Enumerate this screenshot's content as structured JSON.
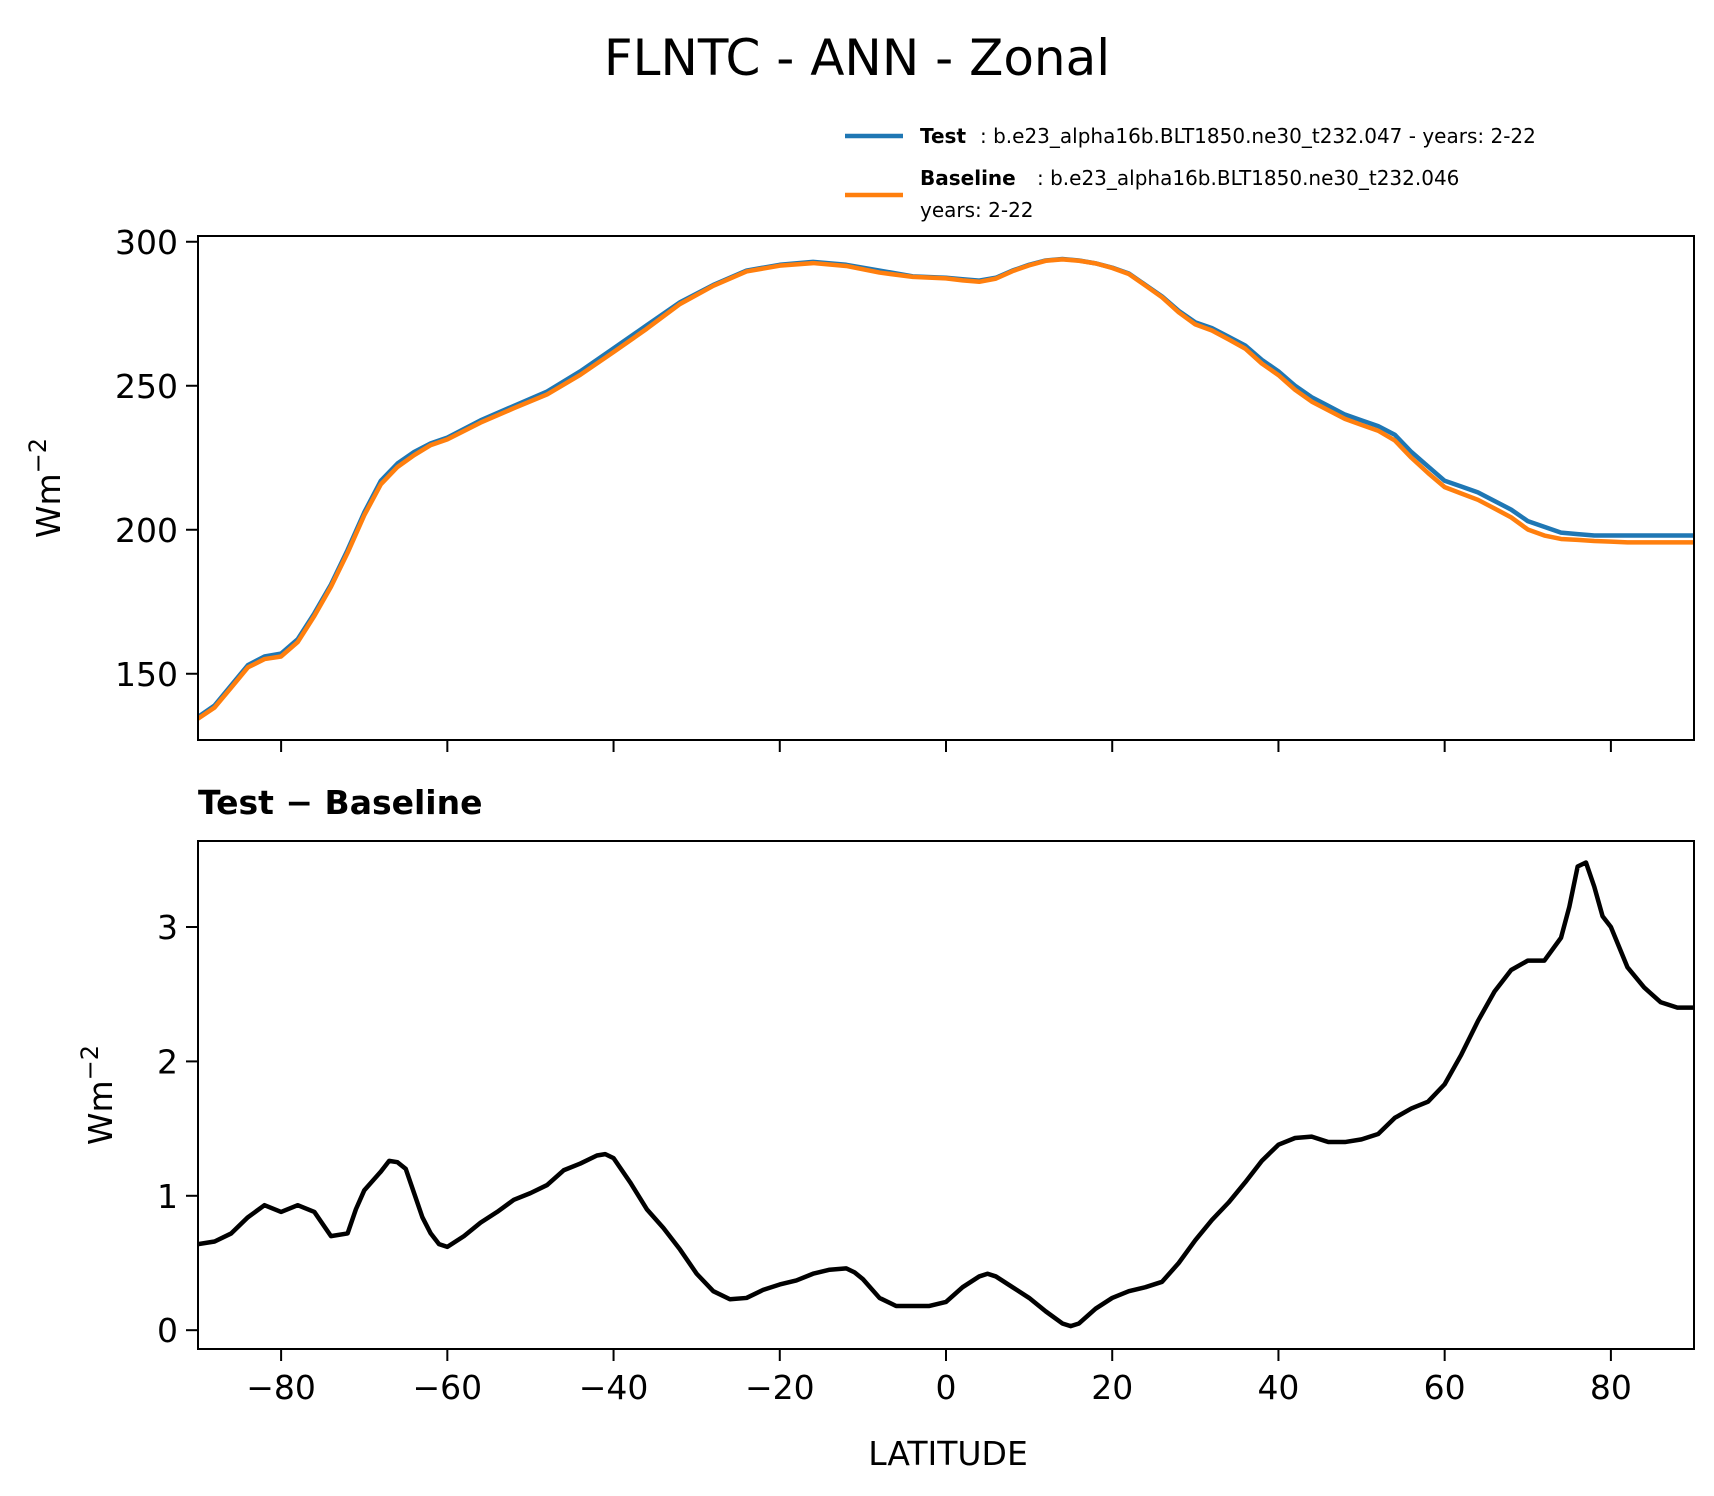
{
  "title": "FLNTC - ANN - Zonal",
  "legend": {
    "test_name": "Test",
    "test_desc": ": b.e23_alpha16b.BLT1850.ne30_t232.047 - years: 2-22",
    "baseline_name": "Baseline",
    "baseline_desc": ": b.e23_alpha16b.BLT1850.ne30_t232.046",
    "baseline_desc2": "years: 2-22"
  },
  "colors": {
    "test": "#1f77b4",
    "baseline": "#ff7f0e",
    "diff": "#000000"
  },
  "diff_title": "Test − Baseline",
  "xlabel": "LATITUDE",
  "chart_data": [
    {
      "type": "line",
      "title": "FLNTC - ANN - Zonal",
      "xlabel": "",
      "ylabel": "Wm⁻²",
      "xlim": [
        -90,
        90
      ],
      "ylim": [
        127,
        302
      ],
      "xticks": [
        -80,
        -60,
        -40,
        -20,
        0,
        20,
        40,
        60,
        80
      ],
      "yticks": [
        150,
        200,
        250,
        300
      ],
      "ytick_labels": [
        "150",
        "200",
        "250",
        "300"
      ],
      "legend_position": "top-right",
      "grid": false,
      "series": [
        {
          "name": "Test",
          "x": [
            -90,
            -88,
            -86,
            -84,
            -82,
            -80,
            -78,
            -76,
            -74,
            -72,
            -70,
            -68,
            -66,
            -64,
            -62,
            -60,
            -56,
            -52,
            -48,
            -44,
            -40,
            -36,
            -32,
            -28,
            -24,
            -20,
            -16,
            -12,
            -8,
            -4,
            0,
            2,
            4,
            6,
            8,
            10,
            12,
            14,
            16,
            18,
            20,
            22,
            24,
            26,
            28,
            30,
            32,
            34,
            36,
            38,
            40,
            42,
            44,
            46,
            48,
            50,
            52,
            54,
            56,
            58,
            60,
            62,
            64,
            66,
            68,
            70,
            72,
            74,
            76,
            78,
            80,
            82,
            84,
            86,
            88,
            90
          ],
          "y": [
            135,
            139,
            146,
            153,
            156,
            157,
            162,
            171,
            181,
            193,
            206,
            217,
            223,
            227,
            230,
            232,
            238,
            243,
            248,
            255,
            263,
            271,
            279,
            285,
            290,
            292,
            293,
            292,
            290,
            288,
            287.5,
            287,
            286.5,
            287.5,
            290,
            292,
            293.5,
            294,
            293.5,
            292.5,
            291,
            289,
            285,
            281,
            276,
            272,
            270,
            267,
            264,
            259,
            255,
            250,
            246,
            243,
            240,
            238,
            236,
            233,
            227,
            222,
            217,
            215,
            213,
            210,
            207,
            203,
            201,
            199,
            198.5,
            198,
            198,
            198,
            198,
            198,
            198,
            198
          ]
        },
        {
          "name": "Baseline",
          "x": [
            -90,
            -88,
            -86,
            -84,
            -82,
            -80,
            -78,
            -76,
            -74,
            -72,
            -70,
            -68,
            -66,
            -64,
            -62,
            -60,
            -56,
            -52,
            -48,
            -44,
            -40,
            -36,
            -32,
            -28,
            -24,
            -20,
            -16,
            -12,
            -8,
            -4,
            0,
            2,
            4,
            6,
            8,
            10,
            12,
            14,
            16,
            18,
            20,
            22,
            24,
            26,
            28,
            30,
            32,
            34,
            36,
            38,
            40,
            42,
            44,
            46,
            48,
            50,
            52,
            54,
            56,
            58,
            60,
            62,
            64,
            66,
            68,
            70,
            72,
            74,
            76,
            78,
            80,
            82,
            84,
            86,
            88,
            90
          ],
          "y": [
            134.4,
            138.3,
            145.2,
            152.2,
            155.1,
            156.0,
            161.0,
            170.1,
            180.2,
            192.0,
            205.0,
            215.8,
            221.8,
            225.9,
            229.4,
            231.4,
            237.2,
            242.2,
            247.0,
            253.8,
            261.7,
            269.8,
            278.4,
            284.7,
            289.7,
            291.7,
            292.6,
            291.6,
            289.3,
            287.8,
            287.3,
            286.6,
            286.1,
            287.2,
            289.8,
            291.8,
            293.4,
            293.9,
            293.4,
            292.5,
            290.9,
            288.8,
            284.8,
            280.7,
            275.5,
            271.3,
            269.2,
            266.1,
            262.9,
            257.7,
            253.7,
            248.6,
            244.5,
            241.5,
            238.5,
            236.4,
            234.4,
            231.0,
            225.0,
            219.7,
            214.8,
            212.6,
            210.4,
            207.4,
            204.3,
            200.1,
            198.0,
            196.8,
            196.5,
            196.1,
            195.9,
            195.6,
            195.6,
            195.6,
            195.6,
            195.6
          ]
        }
      ]
    },
    {
      "type": "line",
      "title": "Test − Baseline",
      "xlabel": "LATITUDE",
      "ylabel": "Wm⁻²",
      "xlim": [
        -90,
        90
      ],
      "ylim": [
        -0.14,
        3.64
      ],
      "xticks": [
        -80,
        -60,
        -40,
        -20,
        0,
        20,
        40,
        60,
        80
      ],
      "xtick_labels": [
        "−80",
        "−60",
        "−40",
        "−20",
        "0",
        "20",
        "40",
        "60",
        "80"
      ],
      "yticks": [
        0,
        1,
        2,
        3
      ],
      "ytick_labels": [
        "0",
        "1",
        "2",
        "3"
      ],
      "grid": false,
      "series": [
        {
          "name": "Test − Baseline",
          "x": [
            -90,
            -88,
            -86,
            -84,
            -82,
            -80,
            -78,
            -76,
            -74,
            -72,
            -71,
            -70,
            -68,
            -67,
            -66,
            -65,
            -64,
            -63,
            -62,
            -61,
            -60,
            -58,
            -56,
            -54,
            -52,
            -50,
            -48,
            -46,
            -44,
            -42,
            -41,
            -40,
            -38,
            -36,
            -34,
            -32,
            -30,
            -28,
            -26,
            -24,
            -22,
            -20,
            -18,
            -16,
            -14,
            -12,
            -11,
            -10,
            -8,
            -6,
            -4,
            -2,
            0,
            2,
            4,
            5,
            6,
            8,
            10,
            12,
            14,
            15,
            16,
            18,
            20,
            22,
            24,
            26,
            28,
            30,
            32,
            34,
            36,
            38,
            40,
            42,
            44,
            46,
            48,
            50,
            52,
            54,
            56,
            58,
            60,
            62,
            64,
            66,
            68,
            70,
            72,
            74,
            75,
            76,
            77,
            78,
            79,
            80,
            82,
            84,
            86,
            88,
            90
          ],
          "y": [
            0.64,
            0.66,
            0.72,
            0.84,
            0.93,
            0.88,
            0.93,
            0.88,
            0.7,
            0.72,
            0.9,
            1.04,
            1.18,
            1.26,
            1.25,
            1.2,
            1.02,
            0.84,
            0.72,
            0.64,
            0.62,
            0.7,
            0.8,
            0.88,
            0.97,
            1.02,
            1.08,
            1.19,
            1.24,
            1.3,
            1.31,
            1.28,
            1.1,
            0.9,
            0.76,
            0.6,
            0.42,
            0.29,
            0.23,
            0.24,
            0.3,
            0.34,
            0.37,
            0.42,
            0.45,
            0.46,
            0.43,
            0.38,
            0.24,
            0.18,
            0.18,
            0.18,
            0.21,
            0.32,
            0.4,
            0.42,
            0.4,
            0.32,
            0.24,
            0.14,
            0.05,
            0.03,
            0.05,
            0.16,
            0.24,
            0.29,
            0.32,
            0.36,
            0.5,
            0.67,
            0.82,
            0.95,
            1.1,
            1.26,
            1.38,
            1.43,
            1.44,
            1.4,
            1.4,
            1.42,
            1.46,
            1.58,
            1.65,
            1.7,
            1.83,
            2.05,
            2.3,
            2.52,
            2.68,
            2.75,
            2.75,
            2.92,
            3.15,
            3.45,
            3.48,
            3.3,
            3.08,
            3.0,
            2.7,
            2.55,
            2.44,
            2.4,
            2.4
          ]
        }
      ]
    }
  ]
}
